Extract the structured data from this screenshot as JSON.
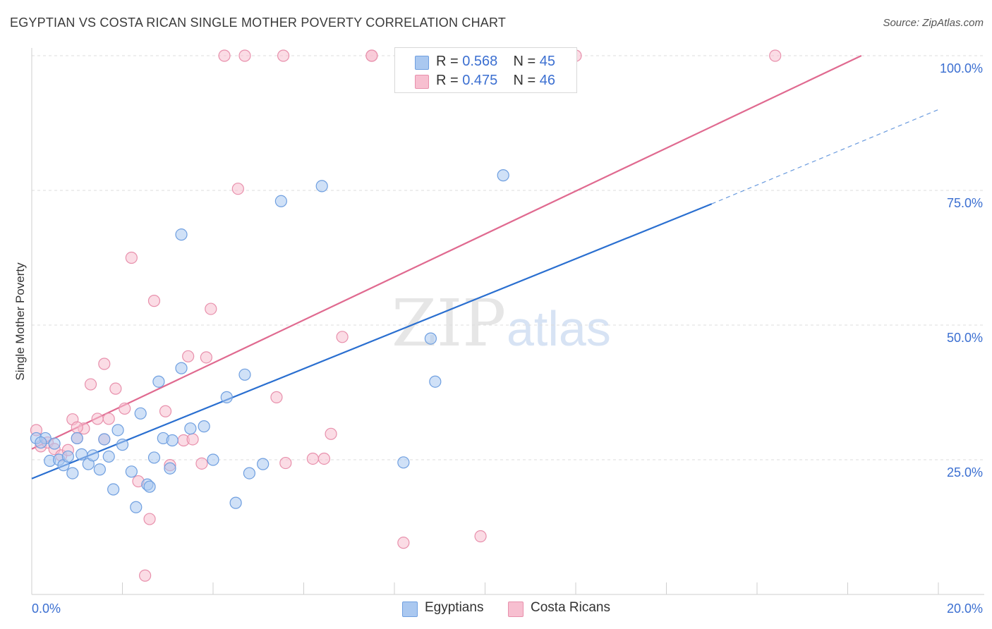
{
  "title": "EGYPTIAN VS COSTA RICAN SINGLE MOTHER POVERTY CORRELATION CHART",
  "source": "Source: ZipAtlas.com",
  "watermark": {
    "zip": "ZIP",
    "atlas": "atlas"
  },
  "legend": {
    "rows": [
      {
        "r_label": "R =",
        "r_value": "0.568",
        "n_label": "N =",
        "n_value": "45"
      },
      {
        "r_label": "R =",
        "r_value": "0.475",
        "n_label": "N =",
        "n_value": "46"
      }
    ]
  },
  "bottom_legend": {
    "egyptians": "Egyptians",
    "costa_ricans": "Costa Ricans"
  },
  "colors": {
    "egyptians_fill": "#aac8f0",
    "egyptians_stroke": "#6f9fe0",
    "egyptians_line": "#2a6fd0",
    "costa_fill": "#f7bfd0",
    "costa_stroke": "#e890ac",
    "costa_line": "#e06a90",
    "axis_label": "#3b6fd1",
    "grid": "#dcdcdc"
  },
  "chart_data": {
    "type": "scatter",
    "title": "EGYPTIAN VS COSTA RICAN SINGLE MOTHER POVERTY CORRELATION CHART",
    "xlabel": "",
    "ylabel": "Single Mother Poverty",
    "xlim": [
      0,
      20
    ],
    "ylim": [
      0,
      100
    ],
    "x_tick_labels": [
      "0.0%",
      "20.0%"
    ],
    "y_ticks": [
      25,
      50,
      75,
      100
    ],
    "y_tick_labels": [
      "25.0%",
      "50.0%",
      "75.0%",
      "100.0%"
    ],
    "grid": true,
    "legend_position": "top-center",
    "series": [
      {
        "name": "Egyptians",
        "r": 0.568,
        "n": 45,
        "trend": {
          "x0": 0,
          "y0": 21.5,
          "x1": 15.0,
          "y1": 72.5,
          "dashed_to_x": 20.0,
          "dashed_to_y": 90.0
        },
        "points": [
          [
            0.1,
            29.0
          ],
          [
            0.3,
            29.0
          ],
          [
            0.4,
            24.8
          ],
          [
            0.5,
            28.0
          ],
          [
            0.6,
            25.0
          ],
          [
            0.7,
            24.0
          ],
          [
            0.8,
            25.6
          ],
          [
            0.9,
            22.5
          ],
          [
            1.0,
            29.0
          ],
          [
            1.1,
            26.0
          ],
          [
            1.25,
            24.2
          ],
          [
            1.35,
            25.8
          ],
          [
            1.5,
            23.2
          ],
          [
            1.7,
            25.6
          ],
          [
            1.8,
            19.5
          ],
          [
            1.9,
            30.5
          ],
          [
            2.0,
            27.8
          ],
          [
            2.2,
            22.8
          ],
          [
            2.3,
            16.2
          ],
          [
            2.4,
            33.6
          ],
          [
            2.55,
            20.4
          ],
          [
            2.6,
            20.0
          ],
          [
            2.7,
            25.4
          ],
          [
            2.8,
            39.5
          ],
          [
            2.9,
            29.0
          ],
          [
            3.05,
            23.4
          ],
          [
            3.1,
            28.6
          ],
          [
            3.3,
            42.0
          ],
          [
            3.5,
            30.8
          ],
          [
            3.8,
            31.2
          ],
          [
            4.0,
            25.0
          ],
          [
            4.3,
            36.6
          ],
          [
            4.5,
            17.0
          ],
          [
            4.7,
            40.8
          ],
          [
            4.8,
            22.5
          ],
          [
            5.1,
            24.2
          ],
          [
            5.5,
            73.0
          ],
          [
            6.4,
            75.8
          ],
          [
            8.2,
            24.5
          ],
          [
            8.8,
            47.5
          ],
          [
            8.9,
            39.5
          ],
          [
            10.4,
            77.8
          ],
          [
            3.3,
            66.8
          ],
          [
            0.2,
            28.2
          ],
          [
            1.6,
            28.8
          ]
        ]
      },
      {
        "name": "Costa Ricans",
        "r": 0.475,
        "n": 46,
        "trend": {
          "x0": 0,
          "y0": 27.0,
          "x1": 18.3,
          "y1": 100.0
        },
        "points": [
          [
            0.1,
            30.5
          ],
          [
            0.2,
            27.5
          ],
          [
            0.35,
            28.2
          ],
          [
            0.5,
            27.0
          ],
          [
            0.65,
            25.8
          ],
          [
            0.8,
            26.8
          ],
          [
            0.9,
            32.5
          ],
          [
            1.0,
            29.0
          ],
          [
            1.15,
            30.8
          ],
          [
            1.3,
            39.0
          ],
          [
            1.45,
            32.6
          ],
          [
            1.6,
            28.8
          ],
          [
            1.6,
            42.8
          ],
          [
            1.7,
            32.6
          ],
          [
            1.85,
            38.2
          ],
          [
            2.05,
            34.5
          ],
          [
            2.2,
            62.5
          ],
          [
            2.35,
            21.0
          ],
          [
            2.5,
            3.5
          ],
          [
            2.6,
            14.0
          ],
          [
            2.7,
            54.5
          ],
          [
            2.95,
            34.0
          ],
          [
            3.05,
            24.0
          ],
          [
            3.35,
            28.6
          ],
          [
            3.45,
            44.2
          ],
          [
            3.55,
            28.8
          ],
          [
            3.75,
            24.3
          ],
          [
            3.85,
            44.0
          ],
          [
            3.95,
            53.0
          ],
          [
            4.25,
            100.0
          ],
          [
            4.55,
            75.3
          ],
          [
            4.7,
            100.0
          ],
          [
            5.4,
            36.6
          ],
          [
            5.55,
            100.0
          ],
          [
            5.6,
            24.4
          ],
          [
            6.2,
            25.2
          ],
          [
            6.45,
            25.2
          ],
          [
            6.6,
            29.8
          ],
          [
            6.85,
            47.8
          ],
          [
            7.5,
            100.0
          ],
          [
            7.5,
            100.0
          ],
          [
            8.2,
            9.6
          ],
          [
            9.9,
            10.8
          ],
          [
            12.0,
            100.0
          ],
          [
            16.4,
            100.0
          ],
          [
            1.0,
            31.0
          ]
        ]
      }
    ]
  }
}
